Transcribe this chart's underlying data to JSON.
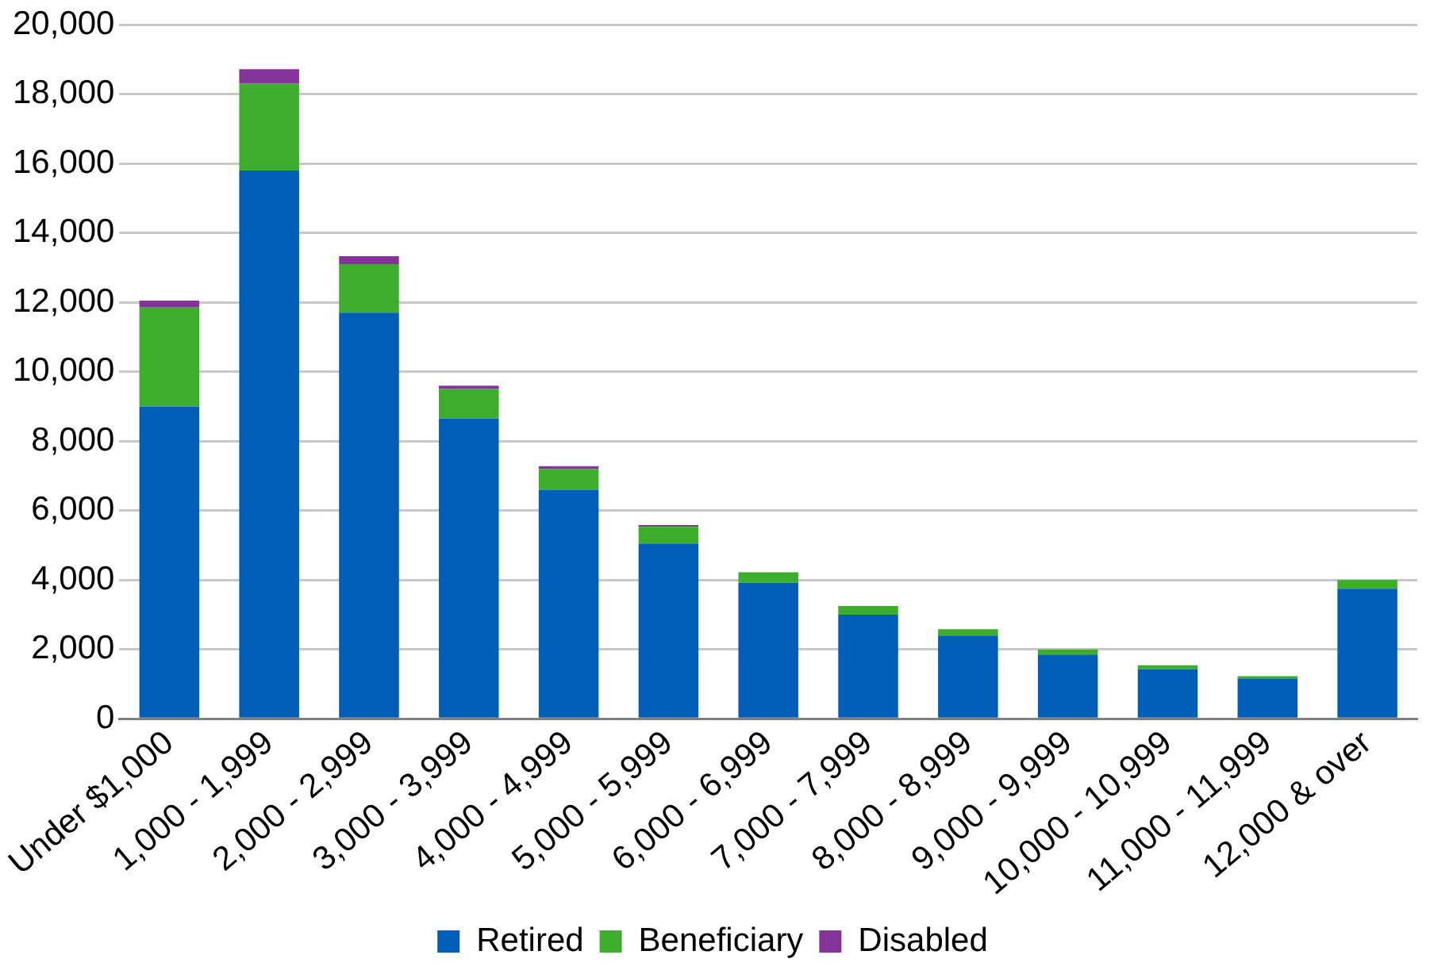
{
  "chart_data": {
    "type": "bar",
    "stacked": true,
    "categories": [
      "Under $1,000",
      "1,000 - 1,999",
      "2,000 - 2,999",
      "3,000 - 3,999",
      "4,000 - 4,999",
      "5,000 - 5,999",
      "6,000 - 6,999",
      "7,000 - 7,999",
      "8,000 - 8,999",
      "9,000 - 9,999",
      "10,000 - 10,999",
      "11,000 - 11,999",
      "12,000 & over"
    ],
    "series": [
      {
        "name": "Retired",
        "color": "#005eb8",
        "values": [
          9000,
          15800,
          11700,
          8650,
          6600,
          5050,
          3920,
          3000,
          2400,
          1850,
          1430,
          1150,
          3750
        ]
      },
      {
        "name": "Beneficiary",
        "color": "#3dae2b",
        "values": [
          2850,
          2500,
          1400,
          850,
          600,
          480,
          300,
          250,
          180,
          150,
          110,
          80,
          250
        ]
      },
      {
        "name": "Disabled",
        "color": "#83339a",
        "values": [
          200,
          420,
          230,
          100,
          80,
          50,
          null,
          null,
          null,
          null,
          null,
          null,
          null
        ]
      }
    ],
    "ylim": [
      0,
      20000
    ],
    "yticks": [
      0,
      {
        "value": 2000,
        "label": "2,000"
      },
      {
        "value": 4000,
        "label": "4,000"
      },
      {
        "value": 6000,
        "label": "6,000"
      },
      {
        "value": 8000,
        "label": "8,000"
      },
      {
        "value": 10000,
        "label": "10,000"
      },
      {
        "value": 12000,
        "label": "12,000"
      },
      {
        "value": 14000,
        "label": "14,000"
      },
      {
        "value": 16000,
        "label": "16,000"
      },
      {
        "value": 18000,
        "label": "18,000"
      },
      {
        "value": 20000,
        "label": "20,000"
      }
    ],
    "grid": "y",
    "legend": "bottom"
  }
}
